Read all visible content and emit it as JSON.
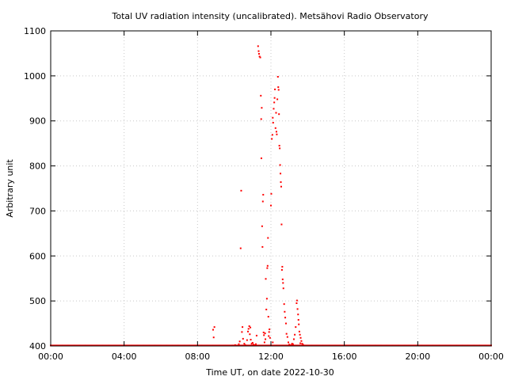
{
  "chart_data": {
    "type": "scatter",
    "title": "Total UV radiation intensity (uncalibrated). Metsähovi Radio Observatory",
    "xlabel": "Time UT, on date 2022-10-30",
    "ylabel": "Arbitrary unit",
    "xlim": [
      0,
      24
    ],
    "ylim": [
      400,
      1100
    ],
    "x_ticks": [
      {
        "value": 0,
        "label": "00:00"
      },
      {
        "value": 4,
        "label": "04:00"
      },
      {
        "value": 8,
        "label": "08:00"
      },
      {
        "value": 12,
        "label": "12:00"
      },
      {
        "value": 16,
        "label": "16:00"
      },
      {
        "value": 20,
        "label": "20:00"
      },
      {
        "value": 24,
        "label": "00:00"
      }
    ],
    "y_ticks": [
      {
        "value": 400,
        "label": "400"
      },
      {
        "value": 500,
        "label": "500"
      },
      {
        "value": 600,
        "label": "600"
      },
      {
        "value": 700,
        "label": "700"
      },
      {
        "value": 800,
        "label": "800"
      },
      {
        "value": 900,
        "label": "900"
      },
      {
        "value": 1000,
        "label": "1000"
      },
      {
        "value": 1100,
        "label": "1100"
      }
    ],
    "grid": true,
    "marker_color": "#ff0000",
    "baseline": {
      "value": 401,
      "x_start": 0,
      "x_end": 24,
      "step": 0.05
    },
    "points": [
      [
        8.85,
        436
      ],
      [
        8.92,
        442
      ],
      [
        8.88,
        419
      ],
      [
        10.25,
        404
      ],
      [
        10.3,
        410
      ],
      [
        10.35,
        617
      ],
      [
        10.38,
        745
      ],
      [
        10.42,
        431
      ],
      [
        10.45,
        442
      ],
      [
        10.48,
        416
      ],
      [
        10.55,
        405
      ],
      [
        10.6,
        402
      ],
      [
        10.7,
        413
      ],
      [
        10.75,
        432
      ],
      [
        10.78,
        438
      ],
      [
        10.82,
        444
      ],
      [
        10.85,
        426
      ],
      [
        10.88,
        441
      ],
      [
        10.9,
        414
      ],
      [
        10.95,
        405
      ],
      [
        11.05,
        403
      ],
      [
        11.1,
        402
      ],
      [
        11.18,
        404
      ],
      [
        11.22,
        423
      ],
      [
        11.3,
        1066
      ],
      [
        11.33,
        1055
      ],
      [
        11.35,
        1049
      ],
      [
        11.38,
        1043
      ],
      [
        11.42,
        1041
      ],
      [
        11.45,
        956
      ],
      [
        11.47,
        904
      ],
      [
        11.5,
        929
      ],
      [
        11.48,
        817
      ],
      [
        11.52,
        666
      ],
      [
        11.54,
        620
      ],
      [
        11.56,
        721
      ],
      [
        11.58,
        736
      ],
      [
        11.6,
        430
      ],
      [
        11.62,
        424
      ],
      [
        11.65,
        408
      ],
      [
        11.68,
        428
      ],
      [
        11.7,
        415
      ],
      [
        11.72,
        549
      ],
      [
        11.75,
        481
      ],
      [
        11.78,
        505
      ],
      [
        11.8,
        573
      ],
      [
        11.82,
        578
      ],
      [
        11.84,
        640
      ],
      [
        11.86,
        465
      ],
      [
        11.88,
        422
      ],
      [
        11.9,
        431
      ],
      [
        11.92,
        437
      ],
      [
        11.95,
        418
      ],
      [
        12.0,
        712
      ],
      [
        12.02,
        738
      ],
      [
        12.05,
        860
      ],
      [
        12.08,
        869
      ],
      [
        12.1,
        907
      ],
      [
        12.12,
        896
      ],
      [
        12.15,
        927
      ],
      [
        12.18,
        941
      ],
      [
        12.2,
        951
      ],
      [
        12.22,
        970
      ],
      [
        12.25,
        884
      ],
      [
        12.28,
        918
      ],
      [
        12.3,
        876
      ],
      [
        12.32,
        870
      ],
      [
        12.35,
        948
      ],
      [
        12.38,
        998
      ],
      [
        12.4,
        975
      ],
      [
        12.42,
        969
      ],
      [
        12.44,
        915
      ],
      [
        12.46,
        845
      ],
      [
        12.48,
        839
      ],
      [
        12.5,
        802
      ],
      [
        12.52,
        783
      ],
      [
        12.54,
        764
      ],
      [
        12.56,
        754
      ],
      [
        12.58,
        670
      ],
      [
        12.6,
        569
      ],
      [
        12.62,
        576
      ],
      [
        12.64,
        548
      ],
      [
        12.66,
        540
      ],
      [
        12.68,
        528
      ],
      [
        12.72,
        493
      ],
      [
        12.75,
        476
      ],
      [
        12.78,
        463
      ],
      [
        12.82,
        450
      ],
      [
        12.85,
        427
      ],
      [
        12.9,
        420
      ],
      [
        12.95,
        408
      ],
      [
        13.0,
        403
      ],
      [
        13.1,
        402
      ],
      [
        13.2,
        404
      ],
      [
        13.25,
        415
      ],
      [
        13.3,
        425
      ],
      [
        13.35,
        442
      ],
      [
        13.4,
        495
      ],
      [
        13.42,
        501
      ],
      [
        13.45,
        482
      ],
      [
        13.48,
        470
      ],
      [
        13.5,
        458
      ],
      [
        13.52,
        448
      ],
      [
        13.55,
        432
      ],
      [
        13.58,
        425
      ],
      [
        13.62,
        418
      ],
      [
        13.66,
        411
      ],
      [
        13.7,
        405
      ],
      [
        13.75,
        403
      ],
      [
        10.05,
        402
      ],
      [
        9.9,
        401
      ],
      [
        12.1,
        408
      ],
      [
        11.0,
        407
      ],
      [
        13.6,
        406
      ],
      [
        13.15,
        405
      ]
    ]
  }
}
